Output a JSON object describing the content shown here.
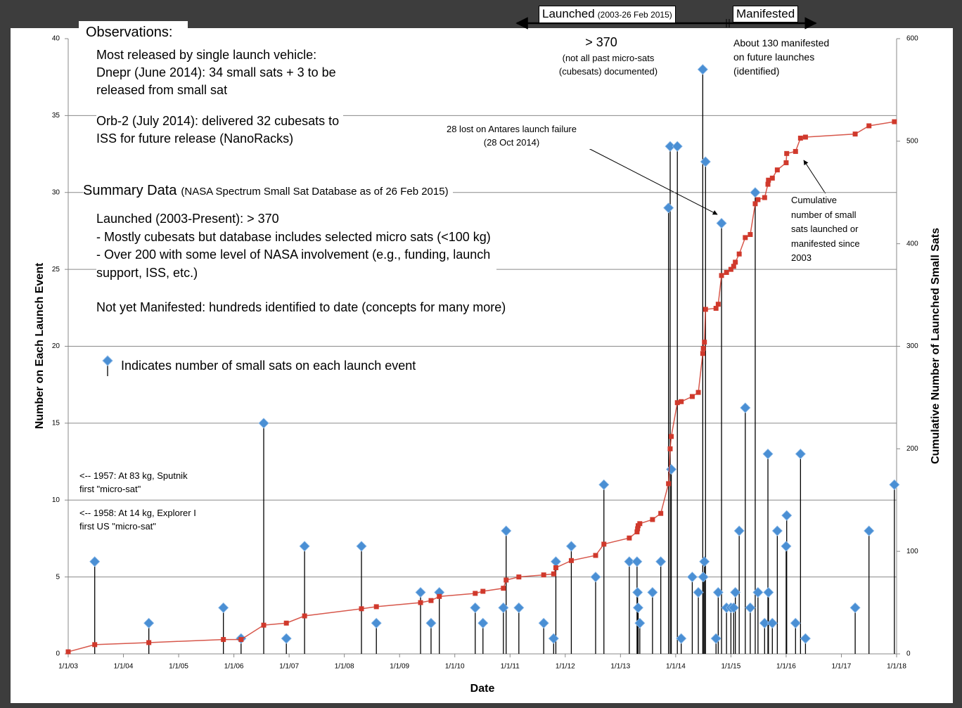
{
  "chart_data": {
    "type": "line",
    "xlabel": "Date",
    "ylabel": "Number on  Each Launch Event",
    "y2label": "Cumulative Number of Launched Small Sats",
    "xlim": [
      2003,
      2018
    ],
    "xticks": [
      {
        "value": 2003,
        "label": "1/1/03"
      },
      {
        "value": 2004,
        "label": "1/1/04"
      },
      {
        "value": 2005,
        "label": "1/1/05"
      },
      {
        "value": 2006,
        "label": "1/1/06"
      },
      {
        "value": 2007,
        "label": "1/1/07"
      },
      {
        "value": 2008,
        "label": "1/1/08"
      },
      {
        "value": 2009,
        "label": "1/1/09"
      },
      {
        "value": 2010,
        "label": "1/1/10"
      },
      {
        "value": 2011,
        "label": "1/1/11"
      },
      {
        "value": 2012,
        "label": "1/1/12"
      },
      {
        "value": 2013,
        "label": "1/1/13"
      },
      {
        "value": 2014,
        "label": "1/1/14"
      },
      {
        "value": 2015,
        "label": "1/1/15"
      },
      {
        "value": 2016,
        "label": "1/1/16"
      },
      {
        "value": 2017,
        "label": "1/1/17"
      },
      {
        "value": 2018,
        "label": "1/1/18"
      }
    ],
    "ylim": [
      0,
      40
    ],
    "yticks": [
      0,
      5,
      10,
      15,
      20,
      25,
      30,
      35,
      40
    ],
    "y2lim": [
      0,
      600
    ],
    "y2ticks": [
      0,
      100,
      200,
      300,
      400,
      500,
      600
    ],
    "grid": true,
    "x": [
      2003.0,
      2003.48,
      2004.46,
      2005.81,
      2006.13,
      2006.54,
      2006.95,
      2007.28,
      2008.31,
      2008.58,
      2009.38,
      2009.57,
      2009.72,
      2010.37,
      2010.51,
      2010.88,
      2010.93,
      2011.16,
      2011.61,
      2011.79,
      2011.83,
      2012.11,
      2012.55,
      2012.7,
      2013.16,
      2013.3,
      2013.31,
      2013.32,
      2013.35,
      2013.58,
      2013.73,
      2013.87,
      2013.9,
      2013.92,
      2014.03,
      2014.1,
      2014.3,
      2014.41,
      2014.49,
      2014.5,
      2014.52,
      2014.54,
      2014.73,
      2014.77,
      2014.83,
      2014.92,
      2015.0,
      2015.05,
      2015.08,
      2015.15,
      2015.26,
      2015.35,
      2015.44,
      2015.49,
      2015.61,
      2015.67,
      2015.68,
      2015.75,
      2015.84,
      2016.0,
      2016.01,
      2016.17,
      2016.26,
      2016.35,
      2017.25,
      2017.5,
      2017.96
    ],
    "series": [
      {
        "name": "Indicates number of small sats on each launch event",
        "color": "#4a8fd4",
        "mark": "stem",
        "values": [
          null,
          6,
          2,
          3,
          1,
          15,
          1,
          7,
          7,
          2,
          4,
          2,
          4,
          3,
          2,
          3,
          8,
          3,
          2,
          1,
          6,
          7,
          5,
          11,
          6,
          6,
          4,
          3,
          2,
          4,
          6,
          29,
          33,
          12,
          33,
          1,
          5,
          4,
          38,
          5,
          6,
          32,
          1,
          4,
          28,
          3,
          3,
          3,
          4,
          8,
          16,
          3,
          30,
          4,
          2,
          13,
          4,
          2,
          8,
          7,
          9,
          2,
          13,
          1,
          3,
          8,
          11
        ]
      },
      {
        "color": "#d0392c",
        "mark": "line",
        "axis": "y2",
        "values": [
          2,
          9,
          11,
          14,
          14,
          28,
          30,
          37,
          44,
          46,
          50,
          52,
          56,
          59,
          61,
          64,
          72,
          75,
          77,
          78,
          84,
          91,
          96,
          107,
          113,
          119,
          122,
          125,
          127,
          131,
          137,
          166,
          200,
          212,
          245,
          246,
          251,
          255,
          293,
          298,
          304,
          336,
          337,
          341,
          369,
          372,
          375,
          378,
          382,
          390,
          406,
          409,
          439,
          443,
          445,
          458,
          462,
          464,
          472,
          479,
          488,
          490,
          503,
          504,
          507,
          515,
          519
        ]
      }
    ],
    "annotations": {
      "observations_title": "Observations:",
      "observations_1": [
        "Most released by single launch vehicle:",
        "Dnepr (June 2014): 34 small sats + 3 to be",
        "released from small sat"
      ],
      "observations_2": [
        "Orb-2 (July 2014): delivered 32 cubesats to",
        "ISS for future release (NanoRacks)"
      ],
      "summary_title": "Summary Data",
      "summary_source": "(NASA Spectrum Small Sat Database as of 26 Feb 2015)",
      "summary_launched": [
        "Launched (2003-Present): > 370",
        "- Mostly cubesats but database includes selected micro sats (<100 kg)",
        "- Over 200 with some level of NASA involvement (e.g., funding, launch",
        "support, ISS, etc.)"
      ],
      "summary_manifested": "Not yet Manifested: hundreds identified to date (concepts for many more)",
      "sputnik": [
        "<-- 1957: At 83 kg, Sputnik",
        "first \"micro-sat\""
      ],
      "explorer": [
        "<-- 1958: At 14 kg, Explorer I",
        "first US \"micro-sat\""
      ],
      "launched_header": "Launched",
      "launched_period": "(2003-26 Feb 2015)",
      "manifested_header": "Manifested",
      "launched_count": "> 370",
      "launched_note": [
        "(not all past micro-sats",
        "(cubesats) documented)"
      ],
      "manifested_note": [
        "About 130 manifested",
        "on future launches",
        "(identified)"
      ],
      "antares": [
        "28 lost on Antares launch failure",
        "(28 Oct 2014)"
      ],
      "cumulative": [
        "Cumulative",
        "number of small",
        "sats launched or",
        "manifested since",
        "2003"
      ]
    }
  }
}
